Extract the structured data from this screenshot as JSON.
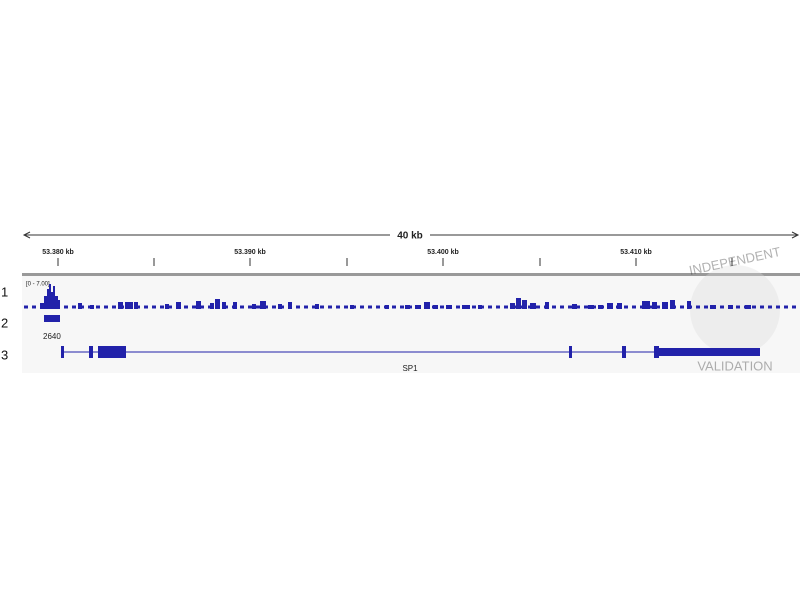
{
  "ruler": {
    "span": "40 kb",
    "ticks": [
      "53.380 kb",
      "53.390 kb",
      "53.400 kb",
      "53.410 kb"
    ]
  },
  "tracks": [
    {
      "label": "1",
      "range": "[0 - 7.00]"
    },
    {
      "label": "2",
      "name": "2640"
    },
    {
      "label": "3",
      "gene": "SP1"
    }
  ],
  "watermark": [
    "INDEPENDENT",
    "VALIDATION"
  ]
}
